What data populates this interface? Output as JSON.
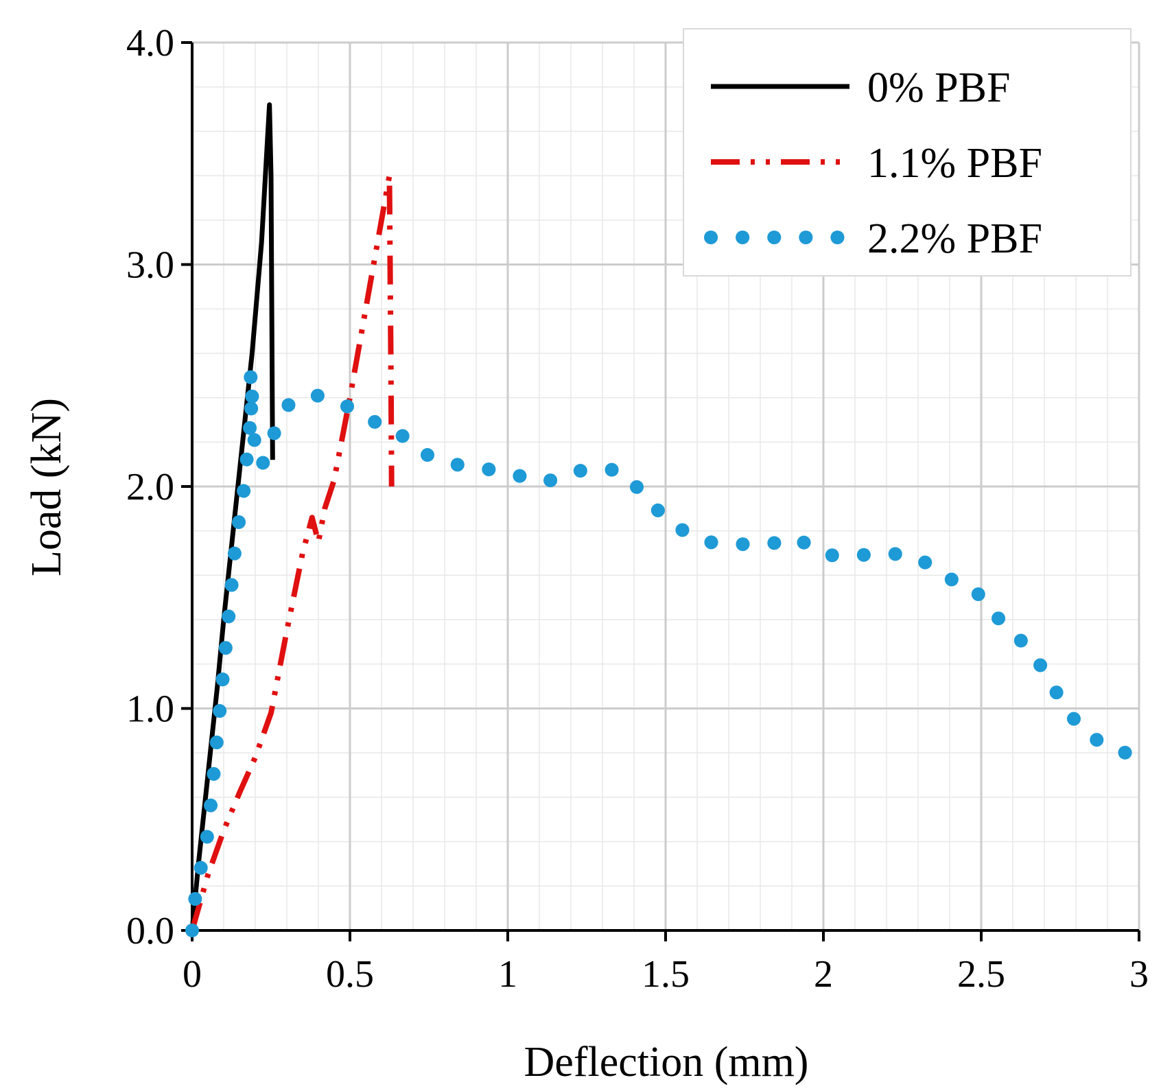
{
  "chart_data": {
    "type": "line",
    "title": "",
    "xlabel": "Deflection (mm)",
    "ylabel": "Load (kN)",
    "xlim": [
      0,
      3
    ],
    "ylim": [
      0,
      4
    ],
    "xticks": [
      0,
      0.5,
      1,
      1.5,
      2,
      2.5,
      3
    ],
    "xtick_labels": [
      "0",
      "0.5",
      "1",
      "1.5",
      "2",
      "2.5",
      "3"
    ],
    "yticks": [
      0,
      1,
      2,
      3,
      4
    ],
    "ytick_labels": [
      "0.0",
      "1.0",
      "2.0",
      "3.0",
      "4.0"
    ],
    "grid": true,
    "legend_position": "top-right",
    "colors": {
      "series_0": "#000000",
      "series_1": "#e01010",
      "series_2": "#1e9ad6",
      "grid_major": "#cccccc",
      "grid_minor": "#e8e8e8"
    },
    "series": [
      {
        "name": "0% PBF",
        "style": "solid",
        "x": [
          0,
          0.02,
          0.05,
          0.08,
          0.1,
          0.13,
          0.16,
          0.19,
          0.22,
          0.245,
          0.25,
          0.255
        ],
        "y": [
          0,
          0.3,
          0.7,
          1.1,
          1.4,
          1.8,
          2.2,
          2.6,
          3.1,
          3.72,
          3.4,
          2.12
        ]
      },
      {
        "name": "1.1% PBF",
        "style": "dash-dot-dot",
        "x": [
          0,
          0.05,
          0.1,
          0.15,
          0.2,
          0.25,
          0.3,
          0.35,
          0.38,
          0.4,
          0.42,
          0.45,
          0.5,
          0.55,
          0.6,
          0.625,
          0.63,
          0.632
        ],
        "y": [
          0,
          0.25,
          0.45,
          0.62,
          0.78,
          0.98,
          1.35,
          1.7,
          1.86,
          1.75,
          1.9,
          2.03,
          2.4,
          2.8,
          3.2,
          3.4,
          2.5,
          2.0
        ]
      },
      {
        "name": "2.2% PBF",
        "style": "dotted",
        "x": [
          0,
          0.01,
          0.03,
          0.05,
          0.06,
          0.07,
          0.08,
          0.09,
          0.1,
          0.11,
          0.12,
          0.13,
          0.14,
          0.16,
          0.17,
          0.18,
          0.19,
          0.19,
          0.18,
          0.19,
          0.2,
          0.22,
          0.26,
          0.31,
          0.4,
          0.48,
          0.58,
          0.64,
          0.73,
          0.83,
          0.93,
          1.03,
          1.12,
          1.22,
          1.32,
          1.38,
          1.44,
          1.53,
          1.63,
          1.73,
          1.83,
          1.91,
          2.01,
          2.11,
          2.21,
          2.3,
          2.39,
          2.48,
          2.51,
          2.6,
          2.66,
          2.71,
          2.76,
          2.82,
          2.92,
          3.0
        ],
        "y": [
          0,
          0.15,
          0.3,
          0.44,
          0.58,
          0.73,
          0.88,
          1.03,
          1.18,
          1.33,
          1.48,
          1.63,
          1.78,
          1.93,
          2.08,
          2.22,
          2.38,
          2.52,
          2.46,
          2.31,
          2.17,
          2.09,
          2.24,
          2.38,
          2.41,
          2.37,
          2.29,
          2.26,
          2.15,
          2.1,
          2.08,
          2.05,
          2.02,
          2.07,
          2.08,
          2.05,
          1.94,
          1.82,
          1.75,
          1.74,
          1.74,
          1.77,
          1.69,
          1.69,
          1.7,
          1.68,
          1.59,
          1.54,
          1.47,
          1.34,
          1.26,
          1.14,
          1.02,
          0.9,
          0.81,
          0.79
        ]
      }
    ]
  }
}
